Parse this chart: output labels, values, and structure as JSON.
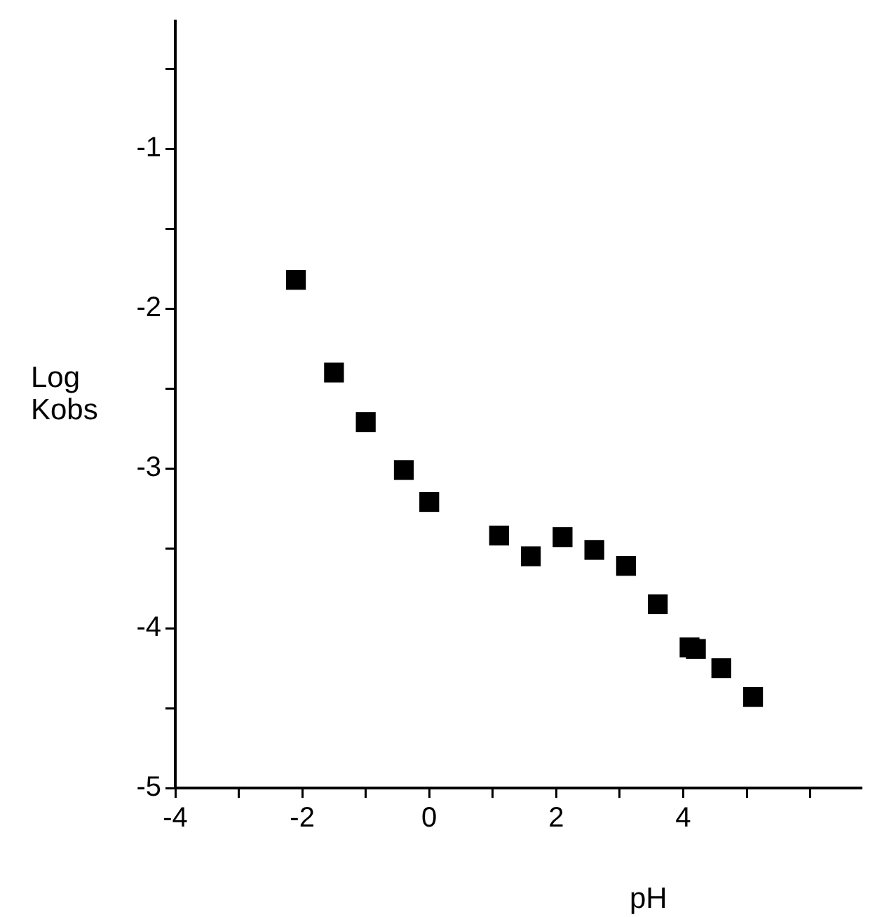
{
  "chart_data": {
    "type": "scatter",
    "xlabel": "pH",
    "ylabel": "Log\nKobs",
    "x": [
      -2.1,
      -1.5,
      -1.0,
      -0.4,
      0.0,
      1.1,
      1.6,
      2.1,
      2.6,
      3.1,
      3.6,
      4.1,
      4.2,
      4.6,
      5.1
    ],
    "series": [
      {
        "color": "#000000",
        "values": [
          -1.82,
          -2.4,
          -2.71,
          -3.01,
          -3.21,
          -3.42,
          -3.55,
          -3.43,
          -3.51,
          -3.61,
          -3.85,
          -4.12,
          -4.13,
          -4.25,
          -4.43
        ]
      }
    ],
    "xlim": [
      -4,
      6.8
    ],
    "ylim": [
      -5,
      -0.2
    ],
    "xticks": [
      -4,
      {
        "value": -3,
        "label": null
      },
      -2,
      {
        "value": -1,
        "label": null
      },
      0,
      {
        "value": 1,
        "label": null
      },
      2,
      {
        "value": 3,
        "label": null
      },
      4,
      {
        "value": 5,
        "label": null
      },
      {
        "value": 6,
        "label": null
      }
    ],
    "yticks": [
      -5,
      {
        "value": -4.5,
        "label": null
      },
      -4,
      {
        "value": -3.5,
        "label": null
      },
      -3,
      {
        "value": -2.5,
        "label": null
      },
      -2,
      {
        "value": -1.5,
        "label": null
      },
      -1,
      {
        "value": -0.5,
        "label": null
      }
    ],
    "marker": "square",
    "grid": false,
    "legend": false
  }
}
